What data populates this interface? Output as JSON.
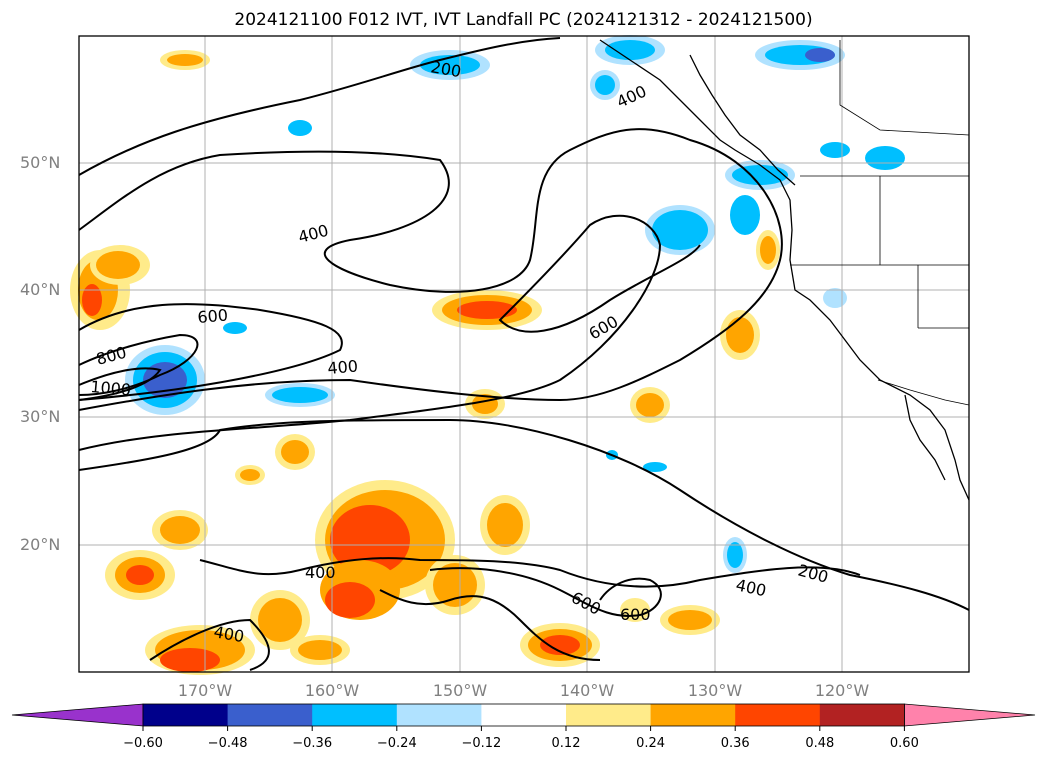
{
  "title": "2024121100 F012 IVT, IVT Landfall PC (2024121312 - 2024121500)",
  "map": {
    "lat_labels": [
      "50°N",
      "40°N",
      "30°N",
      "20°N"
    ],
    "lon_labels": [
      "170°W",
      "160°W",
      "150°W",
      "140°W",
      "130°W",
      "120°W"
    ],
    "contour_labels": [
      "200",
      "400",
      "400",
      "400",
      "400",
      "400",
      "400",
      "600",
      "600",
      "600",
      "600",
      "800",
      "1000",
      "200"
    ]
  },
  "colorbar": {
    "ticks": [
      "−0.60",
      "−0.48",
      "−0.36",
      "−0.24",
      "−0.12",
      "0.12",
      "0.24",
      "0.36",
      "0.48",
      "0.60"
    ],
    "colors": [
      "#9932cc",
      "#00008b",
      "#3a5fcd",
      "#00bfff",
      "#b0e2ff",
      "#ffffff",
      "#ffeb8a",
      "#ffa500",
      "#ff4500",
      "#b22222",
      "#ff82ab"
    ]
  },
  "colors": {
    "blue_light": "#b0e2ff",
    "blue": "#00bfff",
    "blue_dark": "#3a5fcd",
    "yellow": "#ffeb8a",
    "orange": "#ffa500",
    "red": "#ff4500"
  }
}
